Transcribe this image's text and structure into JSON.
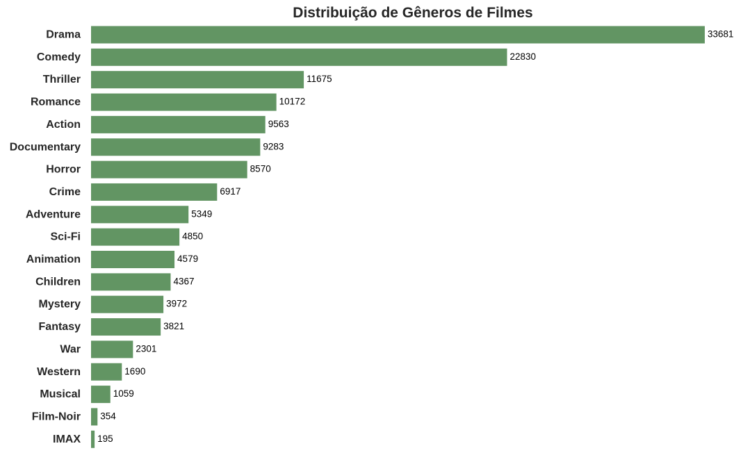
{
  "chart_data": {
    "type": "bar",
    "orientation": "horizontal",
    "title": "Distribuição de Gêneros de Filmes",
    "xlabel": "",
    "ylabel": "",
    "xlim": [
      0,
      33681
    ],
    "grid": false,
    "legend": "none",
    "bar_color": "#629563",
    "categories": [
      "Drama",
      "Comedy",
      "Thriller",
      "Romance",
      "Action",
      "Documentary",
      "Horror",
      "Crime",
      "Adventure",
      "Sci-Fi",
      "Animation",
      "Children",
      "Mystery",
      "Fantasy",
      "War",
      "Western",
      "Musical",
      "Film-Noir",
      "IMAX"
    ],
    "values": [
      33681,
      22830,
      11675,
      10172,
      9563,
      9283,
      8570,
      6917,
      5349,
      4850,
      4579,
      4367,
      3972,
      3821,
      2301,
      1690,
      1059,
      354,
      195
    ]
  }
}
